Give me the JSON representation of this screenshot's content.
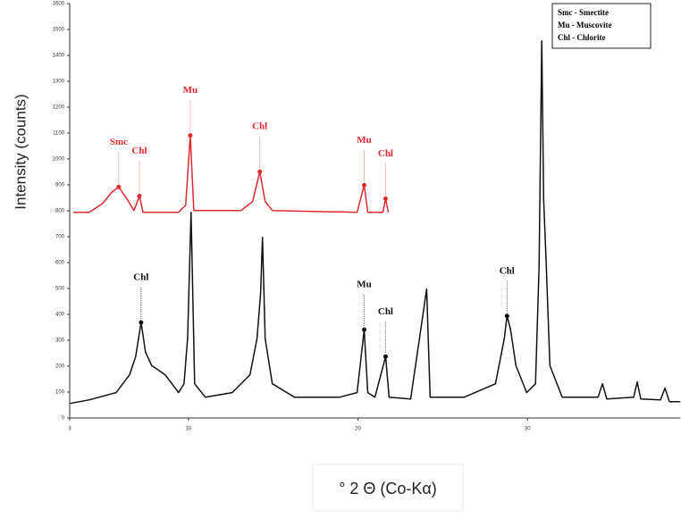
{
  "chart_data": {
    "type": "line",
    "y_label": "Intensity (counts)",
    "x_label": "° 2 Θ (Co-Kα)",
    "abbreviations": [
      "Smc - Smectite",
      "Mu - Muscovite",
      "Chl - Chlorite"
    ],
    "xlim": [
      3,
      39
    ],
    "xticks": [
      3,
      10,
      20,
      30
    ],
    "ylim": [
      0,
      1600
    ],
    "yticks": [
      0,
      100,
      200,
      300,
      400,
      500,
      600,
      700,
      800,
      900,
      1000,
      1100,
      1200,
      1300,
      1400,
      1500,
      1600
    ],
    "series": [
      {
        "color": "#111111",
        "x": [
          3.0,
          4.16,
          5.74,
          6.53,
          6.89,
          7.21,
          7.47,
          7.84,
          8.63,
          9.42,
          9.74,
          9.95,
          10.16,
          10.37,
          11.0,
          12.58,
          13.63,
          14.05,
          14.26,
          14.37,
          14.53,
          14.95,
          16.26,
          18.89,
          19.95,
          20.37,
          20.58,
          21.0,
          21.63,
          21.84,
          23.11,
          24.05,
          24.26,
          26.26,
          28.11,
          28.63,
          28.79,
          29.0,
          29.32,
          29.95,
          30.47,
          30.68,
          30.84,
          30.95,
          31.11,
          31.32,
          31.63,
          32.05,
          34.16,
          34.42,
          34.68,
          36.26,
          36.47,
          36.68,
          37.84,
          38.11,
          38.37,
          39.0
        ],
        "values": [
          56,
          70,
          98,
          167,
          237,
          369,
          254,
          202,
          167,
          98,
          132,
          307,
          794,
          132,
          80,
          98,
          167,
          307,
          481,
          697,
          307,
          132,
          80,
          80,
          98,
          341,
          98,
          80,
          237,
          80,
          73,
          498,
          80,
          80,
          132,
          307,
          394,
          341,
          202,
          98,
          132,
          585,
          1456,
          847,
          585,
          202,
          150,
          80,
          80,
          132,
          73,
          80,
          139,
          73,
          70,
          115,
          63,
          63
        ]
      },
      {
        "color": "#e0282e",
        "x": [
          3.21,
          4.16,
          4.95,
          5.47,
          5.89,
          6.37,
          6.79,
          7.11,
          7.32,
          9.42,
          9.84,
          10.11,
          10.32,
          13.11,
          13.79,
          14.21,
          14.53,
          14.95,
          19.95,
          20.37,
          20.58,
          21.47,
          21.63,
          21.79
        ],
        "values": [
          794,
          794,
          829,
          871,
          892,
          847,
          801,
          857,
          794,
          794,
          822,
          1091,
          801,
          801,
          836,
          951,
          836,
          801,
          794,
          899,
          794,
          794,
          847,
          794
        ]
      }
    ],
    "annotations": [
      {
        "text": "Smc",
        "x": 5.89,
        "y": 892,
        "color": "#e0282e"
      },
      {
        "text": "Chl",
        "x": 7.11,
        "y": 857,
        "color": "#e0282e"
      },
      {
        "text": "Mu",
        "x": 10.11,
        "y": 1091,
        "color": "#e0282e"
      },
      {
        "text": "Chl",
        "x": 14.21,
        "y": 951,
        "color": "#e0282e"
      },
      {
        "text": "Mu",
        "x": 20.37,
        "y": 899,
        "color": "#e0282e"
      },
      {
        "text": "Chl",
        "x": 21.63,
        "y": 847,
        "color": "#e0282e"
      },
      {
        "text": "Chl",
        "x": 7.21,
        "y": 369,
        "color": "#111111"
      },
      {
        "text": "Mu",
        "x": 20.37,
        "y": 341,
        "color": "#111111"
      },
      {
        "text": "Chl",
        "x": 21.63,
        "y": 237,
        "color": "#111111"
      },
      {
        "text": "Chl",
        "x": 28.79,
        "y": 394,
        "color": "#111111"
      }
    ]
  }
}
